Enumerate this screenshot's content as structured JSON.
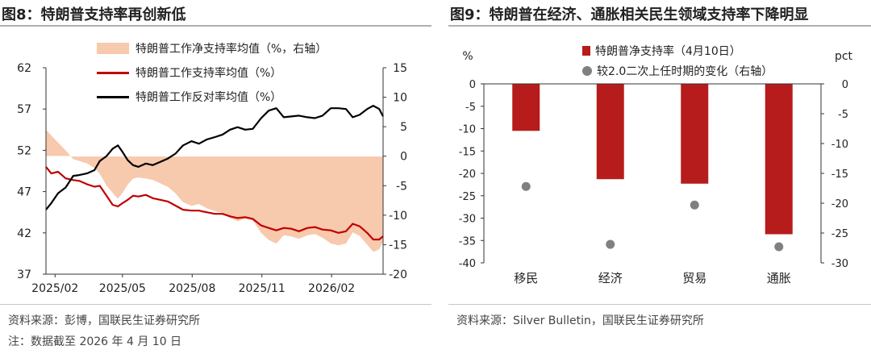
{
  "left": {
    "title": "图8：特朗普支持率再创新低",
    "source": "资料来源：彭博，国联民生证券研究所",
    "note": "注：数据截至 2026 年 4 月 10 日",
    "legend": [
      {
        "label": "特朗普工作净支持率均值（%，右轴）",
        "color": "#f7c9ad",
        "kind": "area"
      },
      {
        "label": "特朗普工作支持率均值（%）",
        "color": "#c00000",
        "kind": "line"
      },
      {
        "label": "特朗普工作反对率均值（%）",
        "color": "#000000",
        "kind": "line"
      }
    ]
  },
  "right": {
    "title": "图9：特朗普在经济、通胀相关民生领域支持率下降明显",
    "source": "资料来源：Silver Bulletin，国联民生证券研究所",
    "left_unit": "%",
    "right_unit": "pct",
    "legend": [
      {
        "label": "特朗普净支持率（4月10日）",
        "color": "#b71c1c",
        "kind": "bar"
      },
      {
        "label": "较2.0二次上任时期的变化（右轴）",
        "color": "#808080",
        "kind": "dot"
      }
    ]
  },
  "chart_data": [
    {
      "type": "line",
      "title": "图8：特朗普支持率再创新低",
      "x_ticks": [
        "2025/02",
        "2025/05",
        "2025/08",
        "2025/11",
        "2026/02"
      ],
      "x_range": [
        "2025-01-20",
        "2026-04-10"
      ],
      "y_left": {
        "min": 37,
        "max": 62,
        "ticks": [
          37,
          42,
          47,
          52,
          57,
          62
        ]
      },
      "y_right": {
        "min": -20,
        "max": 15,
        "ticks": [
          -20,
          -15,
          -10,
          -5,
          0,
          5,
          10,
          15
        ]
      },
      "series": [
        {
          "name": "特朗普工作净支持率均值（%，右轴）",
          "axis": "right",
          "type": "area",
          "color": "#f7c9ad",
          "points": [
            [
              "2025-01-20",
              4.5
            ],
            [
              "2025-01-27",
              3.5
            ],
            [
              "2025-02-05",
              2.3
            ],
            [
              "2025-02-15",
              1.0
            ],
            [
              "2025-02-25",
              -0.5
            ],
            [
              "2025-03-05",
              -0.8
            ],
            [
              "2025-03-15",
              -1.2
            ],
            [
              "2025-03-25",
              -2.0
            ],
            [
              "2025-04-01",
              -3.0
            ],
            [
              "2025-04-10",
              -5.0
            ],
            [
              "2025-04-18",
              -6.2
            ],
            [
              "2025-04-25",
              -7.2
            ],
            [
              "2025-05-01",
              -6.2
            ],
            [
              "2025-05-08",
              -4.8
            ],
            [
              "2025-05-15",
              -3.8
            ],
            [
              "2025-05-22",
              -3.6
            ],
            [
              "2025-06-01",
              -3.8
            ],
            [
              "2025-06-10",
              -4.0
            ],
            [
              "2025-06-20",
              -4.6
            ],
            [
              "2025-06-30",
              -5.2
            ],
            [
              "2025-07-10",
              -6.3
            ],
            [
              "2025-07-20",
              -7.8
            ],
            [
              "2025-07-31",
              -8.4
            ],
            [
              "2025-08-10",
              -8.1
            ],
            [
              "2025-08-20",
              -8.8
            ],
            [
              "2025-08-31",
              -9.3
            ],
            [
              "2025-09-10",
              -9.6
            ],
            [
              "2025-09-20",
              -10.5
            ],
            [
              "2025-09-30",
              -11.0
            ],
            [
              "2025-10-10",
              -10.6
            ],
            [
              "2025-10-20",
              -10.9
            ],
            [
              "2025-10-31",
              -13.0
            ],
            [
              "2025-11-10",
              -14.2
            ],
            [
              "2025-11-20",
              -14.8
            ],
            [
              "2025-11-30",
              -13.4
            ],
            [
              "2025-12-10",
              -13.6
            ],
            [
              "2025-12-20",
              -14.0
            ],
            [
              "2025-12-31",
              -13.4
            ],
            [
              "2026-01-10",
              -13.2
            ],
            [
              "2026-01-20",
              -13.8
            ],
            [
              "2026-01-31",
              -14.8
            ],
            [
              "2026-02-10",
              -15.1
            ],
            [
              "2026-02-20",
              -14.8
            ],
            [
              "2026-03-01",
              -12.9
            ],
            [
              "2026-03-10",
              -13.5
            ],
            [
              "2026-03-20",
              -15.0
            ],
            [
              "2026-03-28",
              -16.2
            ],
            [
              "2026-04-05",
              -15.8
            ],
            [
              "2026-04-10",
              -14.5
            ]
          ]
        },
        {
          "name": "特朗普工作支持率均值（%）",
          "axis": "left",
          "type": "line",
          "color": "#c00000",
          "points": [
            [
              "2025-01-20",
              50.0
            ],
            [
              "2025-01-27",
              49.2
            ],
            [
              "2025-02-05",
              49.4
            ],
            [
              "2025-02-15",
              48.6
            ],
            [
              "2025-02-25",
              48.4
            ],
            [
              "2025-03-05",
              48.3
            ],
            [
              "2025-03-15",
              47.9
            ],
            [
              "2025-03-25",
              47.6
            ],
            [
              "2025-04-01",
              47.7
            ],
            [
              "2025-04-10",
              46.5
            ],
            [
              "2025-04-18",
              45.4
            ],
            [
              "2025-04-25",
              45.2
            ],
            [
              "2025-05-01",
              45.6
            ],
            [
              "2025-05-08",
              46.0
            ],
            [
              "2025-05-15",
              46.5
            ],
            [
              "2025-05-22",
              46.4
            ],
            [
              "2025-06-01",
              46.6
            ],
            [
              "2025-06-10",
              46.2
            ],
            [
              "2025-06-20",
              46.0
            ],
            [
              "2025-06-30",
              45.8
            ],
            [
              "2025-07-10",
              45.3
            ],
            [
              "2025-07-20",
              44.8
            ],
            [
              "2025-07-31",
              44.7
            ],
            [
              "2025-08-10",
              44.7
            ],
            [
              "2025-08-20",
              44.5
            ],
            [
              "2025-08-31",
              44.3
            ],
            [
              "2025-09-10",
              44.3
            ],
            [
              "2025-09-20",
              44.0
            ],
            [
              "2025-09-30",
              43.8
            ],
            [
              "2025-10-10",
              43.9
            ],
            [
              "2025-10-20",
              43.7
            ],
            [
              "2025-10-31",
              42.9
            ],
            [
              "2025-11-10",
              42.6
            ],
            [
              "2025-11-20",
              42.3
            ],
            [
              "2025-11-30",
              42.6
            ],
            [
              "2025-12-10",
              42.5
            ],
            [
              "2025-12-20",
              42.2
            ],
            [
              "2025-12-31",
              42.6
            ],
            [
              "2026-01-10",
              42.7
            ],
            [
              "2026-01-20",
              42.4
            ],
            [
              "2026-01-31",
              42.3
            ],
            [
              "2026-02-10",
              42.0
            ],
            [
              "2026-02-20",
              42.2
            ],
            [
              "2026-03-01",
              43.1
            ],
            [
              "2026-03-10",
              42.8
            ],
            [
              "2026-03-20",
              42.0
            ],
            [
              "2026-03-28",
              41.2
            ],
            [
              "2026-04-05",
              41.2
            ],
            [
              "2026-04-10",
              41.6
            ]
          ]
        },
        {
          "name": "特朗普工作反对率均值（%）",
          "axis": "left",
          "type": "line",
          "color": "#000000",
          "points": [
            [
              "2025-01-20",
              44.8
            ],
            [
              "2025-01-27",
              45.6
            ],
            [
              "2025-02-05",
              46.8
            ],
            [
              "2025-02-15",
              47.5
            ],
            [
              "2025-02-25",
              48.9
            ],
            [
              "2025-03-05",
              49.0
            ],
            [
              "2025-03-15",
              49.2
            ],
            [
              "2025-03-25",
              49.6
            ],
            [
              "2025-04-01",
              50.7
            ],
            [
              "2025-04-10",
              51.3
            ],
            [
              "2025-04-18",
              52.2
            ],
            [
              "2025-04-25",
              52.6
            ],
            [
              "2025-05-01",
              51.8
            ],
            [
              "2025-05-08",
              50.8
            ],
            [
              "2025-05-15",
              50.2
            ],
            [
              "2025-05-22",
              50.0
            ],
            [
              "2025-06-01",
              50.4
            ],
            [
              "2025-06-10",
              50.2
            ],
            [
              "2025-06-20",
              50.6
            ],
            [
              "2025-06-30",
              51.0
            ],
            [
              "2025-07-10",
              51.6
            ],
            [
              "2025-07-20",
              52.6
            ],
            [
              "2025-07-31",
              53.1
            ],
            [
              "2025-08-10",
              52.8
            ],
            [
              "2025-08-20",
              53.3
            ],
            [
              "2025-08-31",
              53.6
            ],
            [
              "2025-09-10",
              53.9
            ],
            [
              "2025-09-20",
              54.5
            ],
            [
              "2025-09-30",
              54.8
            ],
            [
              "2025-10-10",
              54.5
            ],
            [
              "2025-10-20",
              54.6
            ],
            [
              "2025-10-31",
              55.9
            ],
            [
              "2025-11-10",
              56.8
            ],
            [
              "2025-11-20",
              57.1
            ],
            [
              "2025-11-30",
              56.0
            ],
            [
              "2025-12-10",
              56.1
            ],
            [
              "2025-12-20",
              56.2
            ],
            [
              "2025-12-31",
              56.0
            ],
            [
              "2026-01-10",
              55.9
            ],
            [
              "2026-01-20",
              56.2
            ],
            [
              "2026-01-31",
              57.1
            ],
            [
              "2026-02-10",
              57.1
            ],
            [
              "2026-02-20",
              57.0
            ],
            [
              "2026-03-01",
              56.0
            ],
            [
              "2026-03-10",
              56.3
            ],
            [
              "2026-03-20",
              57.0
            ],
            [
              "2026-03-28",
              57.4
            ],
            [
              "2026-04-05",
              57.0
            ],
            [
              "2026-04-10",
              56.1
            ]
          ]
        }
      ]
    },
    {
      "type": "bar",
      "title": "图9：特朗普在经济、通胀相关民生领域支持率下降明显",
      "categories": [
        "移民",
        "经济",
        "贸易",
        "通胀"
      ],
      "y_left": {
        "min": -40,
        "max": 0,
        "ticks": [
          0,
          -5,
          -10,
          -15,
          -20,
          -25,
          -30,
          -35,
          -40
        ]
      },
      "y_right": {
        "min": -30,
        "max": 0,
        "ticks": [
          0,
          -5,
          -10,
          -15,
          -20,
          -25,
          -30
        ]
      },
      "series": [
        {
          "name": "特朗普净支持率（4月10日）",
          "axis": "left",
          "type": "bar",
          "color": "#b71c1c",
          "values": [
            -10.5,
            -21.3,
            -22.3,
            -33.6
          ]
        },
        {
          "name": "较2.0二次上任时期的变化（右轴）",
          "axis": "right",
          "type": "scatter",
          "color": "#808080",
          "values": [
            -17.2,
            -26.9,
            -20.3,
            -27.3
          ]
        }
      ]
    }
  ]
}
